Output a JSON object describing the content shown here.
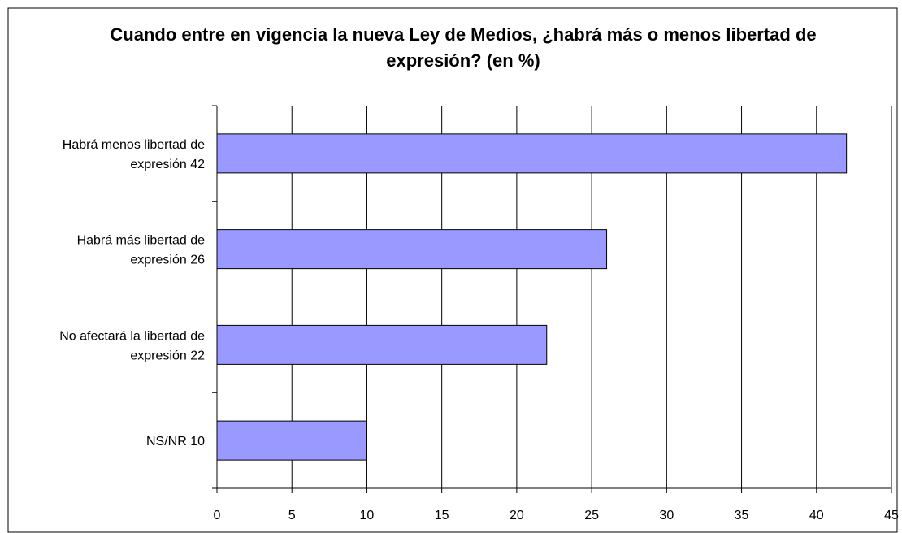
{
  "chart_data": {
    "type": "bar",
    "orientation": "horizontal",
    "title": "Cuando entre en vigencia la nueva Ley de Medios, ¿habrá más o menos libertad de expresión? (en %)",
    "categories": [
      "Habrá menos libertad de expresión 42",
      "Habrá más libertad de expresión 26",
      "No afectará la libertad de expresión 22",
      "NS/NR 10"
    ],
    "values": [
      42,
      26,
      22,
      10
    ],
    "color": "#9999ff",
    "xlim": [
      0,
      45
    ],
    "xticks": [
      0,
      5,
      10,
      15,
      20,
      25,
      30,
      35,
      40,
      45
    ],
    "grid": true
  }
}
